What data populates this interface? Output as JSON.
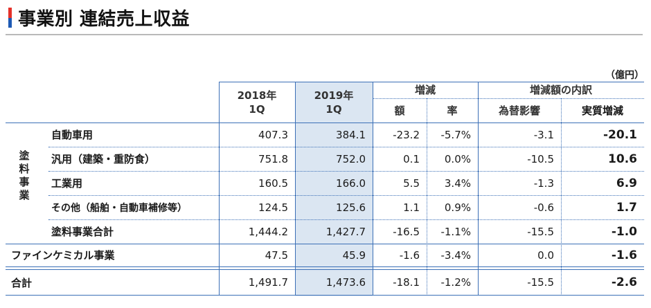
{
  "title": "事業別 連結売上収益",
  "unit": "（億円）",
  "header": {
    "col_2018": [
      "2018年",
      "1Q"
    ],
    "col_2019": [
      "2019年",
      "1Q"
    ],
    "change": "増減",
    "amount": "額",
    "rate": "率",
    "breakdown": "増減額の内訳",
    "fx_impact": "為替影響",
    "real_change": "実質増減"
  },
  "segment_label": [
    "塗",
    "料",
    "事",
    "業"
  ],
  "rows": [
    {
      "label": "自動車用",
      "y2018": "407.3",
      "y2019": "384.1",
      "amount": "-23.2",
      "rate": "-5.7%",
      "fx": "-3.1",
      "real": "-20.1"
    },
    {
      "label": "汎用（建築・重防食）",
      "y2018": "751.8",
      "y2019": "752.0",
      "amount": "0.1",
      "rate": "0.0%",
      "fx": "-10.5",
      "real": "10.6"
    },
    {
      "label": "工業用",
      "y2018": "160.5",
      "y2019": "166.0",
      "amount": "5.5",
      "rate": "3.4%",
      "fx": "-1.3",
      "real": "6.9"
    },
    {
      "label": "その他（船舶・自動車補修等）",
      "y2018": "124.5",
      "y2019": "125.6",
      "amount": "1.1",
      "rate": "0.9%",
      "fx": "-0.6",
      "real": "1.7"
    },
    {
      "label": "塗料事業合計",
      "y2018": "1,444.2",
      "y2019": "1,427.7",
      "amount": "-16.5",
      "rate": "-1.1%",
      "fx": "-15.5",
      "real": "-1.0"
    },
    {
      "label": "ファインケミカル事業",
      "y2018": "47.5",
      "y2019": "45.9",
      "amount": "-1.6",
      "rate": "-3.4%",
      "fx": "0.0",
      "real": "-1.6"
    },
    {
      "label": "合計",
      "y2018": "1,491.7",
      "y2019": "1,473.6",
      "amount": "-18.1",
      "rate": "-1.2%",
      "fx": "-15.5",
      "real": "-2.6"
    }
  ],
  "colors": {
    "accent_red": "#e5312a",
    "accent_blue": "#1e5ab4",
    "rule_blue": "#3b6fb6",
    "highlight": "#dbe6f2"
  }
}
